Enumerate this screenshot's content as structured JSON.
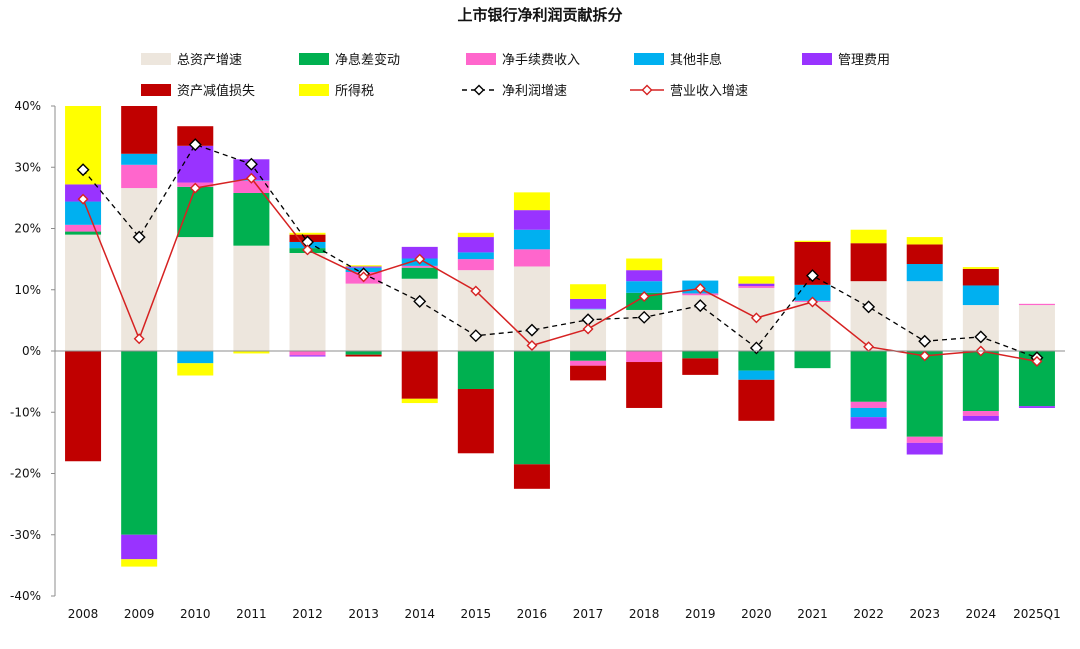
{
  "chart_data": {
    "type": "bar",
    "title": "上市银行净利润贡献拆分",
    "categories": [
      "2008",
      "2009",
      "2010",
      "2011",
      "2012",
      "2013",
      "2014",
      "2015",
      "2016",
      "2017",
      "2018",
      "2019",
      "2020",
      "2021",
      "2022",
      "2023",
      "2024",
      "2025Q1"
    ],
    "ylim": [
      -40,
      40
    ],
    "yticks": [
      40,
      30,
      20,
      10,
      0,
      -10,
      -20,
      -30,
      -40
    ],
    "ytick_labels": [
      "40%",
      "30%",
      "20%",
      "10%",
      "0%",
      "-10%",
      "-20%",
      "-30%",
      "-40%"
    ],
    "legend_position": "top",
    "series": [
      {
        "name": "总资产增速",
        "kind": "bar",
        "color": "#EDE6DD",
        "values": [
          19,
          26.6,
          18.6,
          17.2,
          16,
          11,
          11.8,
          13.2,
          13.8,
          6.8,
          6.7,
          9.1,
          10.3,
          8,
          11.4,
          11.4,
          7.5,
          7.5
        ]
      },
      {
        "name": "净息差变动",
        "kind": "bar",
        "color": "#00B050",
        "values": [
          0.5,
          -30,
          8.2,
          8.6,
          0.8,
          -0.6,
          1.8,
          -6.2,
          -18.5,
          -1.6,
          2.8,
          -1.2,
          -3.2,
          -2.8,
          -8.3,
          -14,
          -9.8,
          -9
        ]
      },
      {
        "name": "净手续费收入",
        "kind": "bar",
        "color": "#FF66CC",
        "values": [
          1.1,
          3.8,
          0.7,
          2,
          -0.7,
          1.9,
          0.3,
          1.8,
          2.8,
          -0.8,
          -1.8,
          0.3,
          0.3,
          0.2,
          -1,
          -1,
          -0.8,
          0.2
        ]
      },
      {
        "name": "其他非息",
        "kind": "bar",
        "color": "#00B0F0",
        "values": [
          3.8,
          1.8,
          -2,
          0.1,
          1,
          0.7,
          1.2,
          1.1,
          3.2,
          0.1,
          1.9,
          2.1,
          -1.5,
          2.6,
          -1.5,
          2.8,
          3.2,
          0
        ]
      },
      {
        "name": "管理费用",
        "kind": "bar",
        "color": "#9933FF",
        "values": [
          2.8,
          -4,
          6,
          3.4,
          -0.2,
          0.2,
          1.9,
          2.5,
          3.2,
          1.6,
          1.8,
          0,
          0.4,
          0,
          -1.9,
          -1.9,
          -0.8,
          -0.3
        ]
      },
      {
        "name": "资产减值损失",
        "kind": "bar",
        "color": "#C00000",
        "values": [
          -18,
          7.8,
          3.2,
          0,
          1.2,
          -0.3,
          -7.8,
          -10.5,
          -4,
          -2.4,
          -7.5,
          -2.7,
          -6.7,
          7,
          6.2,
          3.2,
          2.7,
          0
        ]
      },
      {
        "name": "所得税",
        "kind": "bar",
        "color": "#FFFF00",
        "values": [
          12.8,
          -1.2,
          -2,
          -0.4,
          0.3,
          0.2,
          -0.7,
          0.7,
          2.9,
          2.4,
          1.9,
          0,
          1.2,
          0.2,
          2.2,
          1.2,
          0.3,
          0
        ]
      },
      {
        "name": "净利润增速",
        "kind": "line",
        "color": "#000000",
        "dashed": true,
        "marker": "diamond-open",
        "values": [
          29.6,
          18.6,
          33.7,
          30.5,
          17.8,
          12.6,
          8.1,
          2.5,
          3.4,
          5.1,
          5.5,
          7.4,
          0.5,
          12.3,
          7.2,
          1.6,
          2.3,
          -1.1
        ]
      },
      {
        "name": "营业收入增速",
        "kind": "line",
        "color": "#D62222",
        "dashed": false,
        "marker": "diamond-open",
        "values": [
          24.8,
          2,
          26.6,
          28.2,
          16.5,
          12.1,
          15,
          9.8,
          0.9,
          3.6,
          8.9,
          10.2,
          5.4,
          8,
          0.7,
          -0.8,
          0,
          -1.7
        ]
      }
    ]
  }
}
